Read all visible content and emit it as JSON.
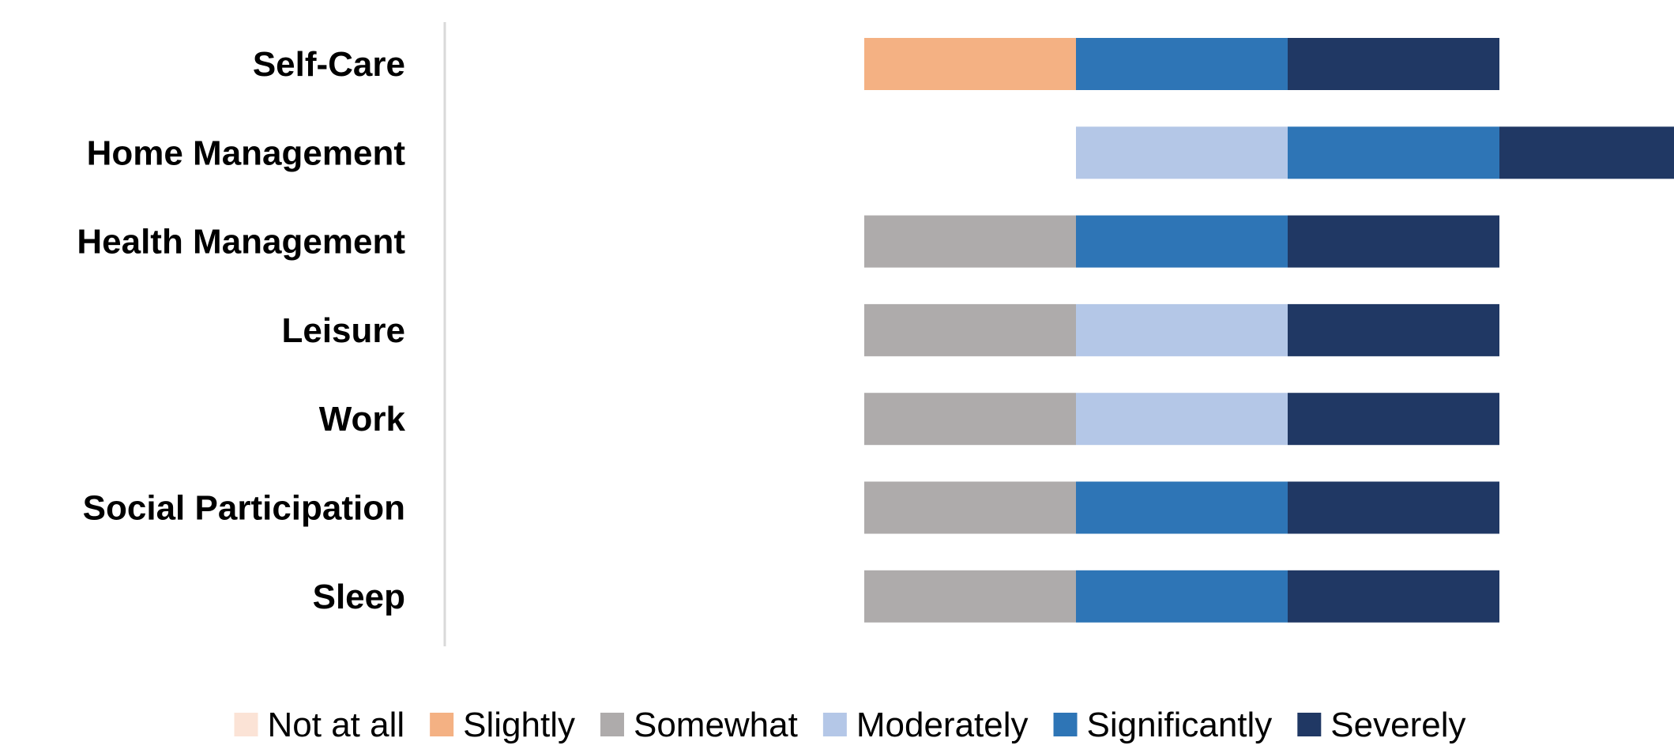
{
  "chart_data": {
    "type": "bar",
    "orientation": "horizontal",
    "stacked": true,
    "categories": [
      "Self-Care",
      "Home Management",
      "Health Management",
      "Leisure",
      "Work",
      "Social Participation",
      "Sleep"
    ],
    "series": [
      {
        "name": "Not at all",
        "color": "#FBE3D6",
        "values": [
          0,
          0,
          0,
          0,
          0,
          0,
          0
        ]
      },
      {
        "name": "Slightly",
        "color": "#F4B183",
        "values": [
          1,
          0,
          0,
          0,
          0,
          0,
          0
        ]
      },
      {
        "name": "Somewhat",
        "color": "#AEABAB",
        "values": [
          0,
          0,
          1,
          1,
          1,
          1,
          1
        ]
      },
      {
        "name": "Moderately",
        "color": "#B4C7E7",
        "values": [
          0,
          1,
          0,
          1,
          1,
          0,
          0
        ]
      },
      {
        "name": "Significantly",
        "color": "#2E75B6",
        "values": [
          1,
          1,
          1,
          0,
          0,
          1,
          1
        ]
      },
      {
        "name": "Severely",
        "color": "#203864",
        "values": [
          1,
          1,
          1,
          1,
          1,
          1,
          1
        ]
      }
    ],
    "title": "",
    "xlabel": "",
    "ylabel": "",
    "axes_visible": false,
    "grid": false,
    "legend_position": "bottom"
  }
}
